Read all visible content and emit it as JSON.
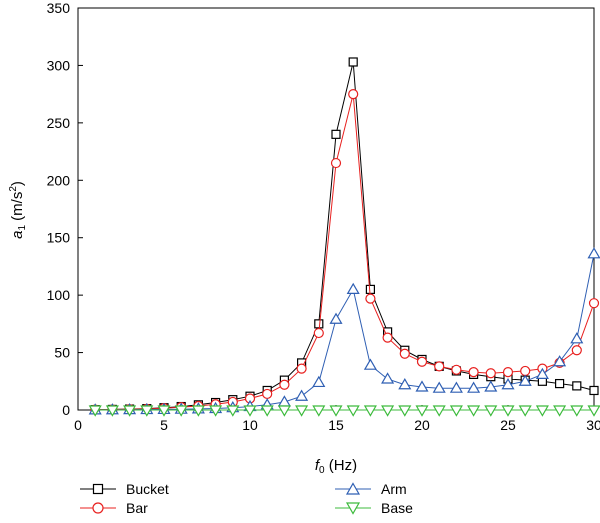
{
  "chart_data": {
    "type": "line",
    "xlabel": {
      "base": "f",
      "sub": "0",
      "unit": " (Hz)"
    },
    "ylabel": {
      "base": "a",
      "sub": "1",
      "unit_open": " (m/s",
      "sup": "2",
      "unit_close": ")"
    },
    "xlim": [
      0,
      30
    ],
    "ylim": [
      0,
      350
    ],
    "xticks": [
      0,
      5,
      10,
      15,
      20,
      25,
      30
    ],
    "yticks": [
      0,
      50,
      100,
      150,
      200,
      250,
      300,
      350
    ],
    "grid": false,
    "legend_position": "bottom",
    "x": [
      1,
      2,
      3,
      4,
      5,
      6,
      7,
      8,
      9,
      10,
      11,
      12,
      13,
      14,
      15,
      16,
      17,
      18,
      19,
      20,
      21,
      22,
      23,
      24,
      25,
      26,
      27,
      28,
      29,
      30
    ],
    "series": [
      {
        "name": "Bucket",
        "color": "#000000",
        "marker": "square",
        "values": [
          0.3,
          0.5,
          0.8,
          1.2,
          2,
          3,
          4.5,
          6.5,
          9,
          12,
          17,
          26,
          41,
          75,
          240,
          303,
          105,
          68,
          52,
          44,
          38,
          34,
          31,
          29,
          27,
          26,
          25,
          23,
          21,
          17
        ]
      },
      {
        "name": "Bar",
        "color": "#e8201f",
        "marker": "circle",
        "values": [
          0.3,
          0.4,
          0.7,
          1,
          1.6,
          2.5,
          3.5,
          5,
          7,
          10,
          14,
          22,
          36,
          67,
          215,
          275,
          97,
          63,
          49,
          42,
          38,
          35,
          33,
          32,
          33,
          34,
          36,
          41,
          52,
          93
        ]
      },
      {
        "name": "Arm",
        "color": "#2f5fb3",
        "marker": "triangle-up",
        "values": [
          0.1,
          0.2,
          0.3,
          0.4,
          0.5,
          0.7,
          1,
          1.3,
          2,
          3,
          4.5,
          7,
          12,
          24,
          79,
          105,
          39,
          27,
          22,
          20,
          19,
          19,
          19,
          20,
          22,
          25,
          31,
          42,
          62,
          136
        ]
      },
      {
        "name": "Base",
        "color": "#3dbb3d",
        "marker": "triangle-down",
        "values": [
          0,
          0,
          0,
          0,
          0,
          0,
          0,
          0,
          0,
          0,
          0,
          0,
          0,
          0,
          0,
          0,
          0,
          0,
          0,
          0,
          0,
          0,
          0,
          0,
          0,
          0,
          0,
          0,
          0,
          0
        ]
      }
    ]
  }
}
